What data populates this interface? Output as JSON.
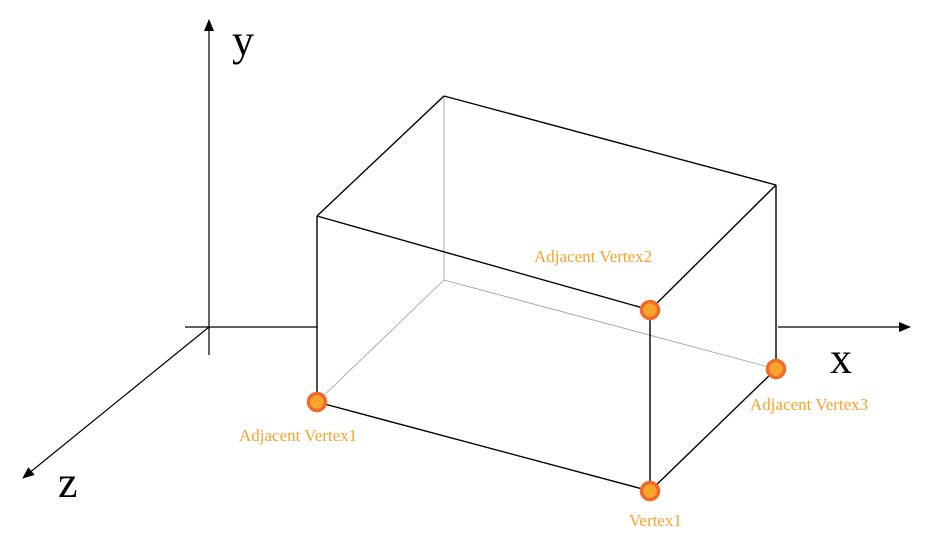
{
  "axes": {
    "x_label": "x",
    "y_label": "y",
    "z_label": "z"
  },
  "vertices": {
    "vertex1": "Vertex1",
    "adjacent1": "Adjacent Vertex1",
    "adjacent2": "Adjacent Vertex2",
    "adjacent3": "Adjacent Vertex3"
  },
  "colors": {
    "marker_fill": "#f7a42c",
    "marker_ring": "#f06a2a",
    "label_text": "#f5a230",
    "edge": "#000000",
    "hidden_edge": "#999999"
  }
}
